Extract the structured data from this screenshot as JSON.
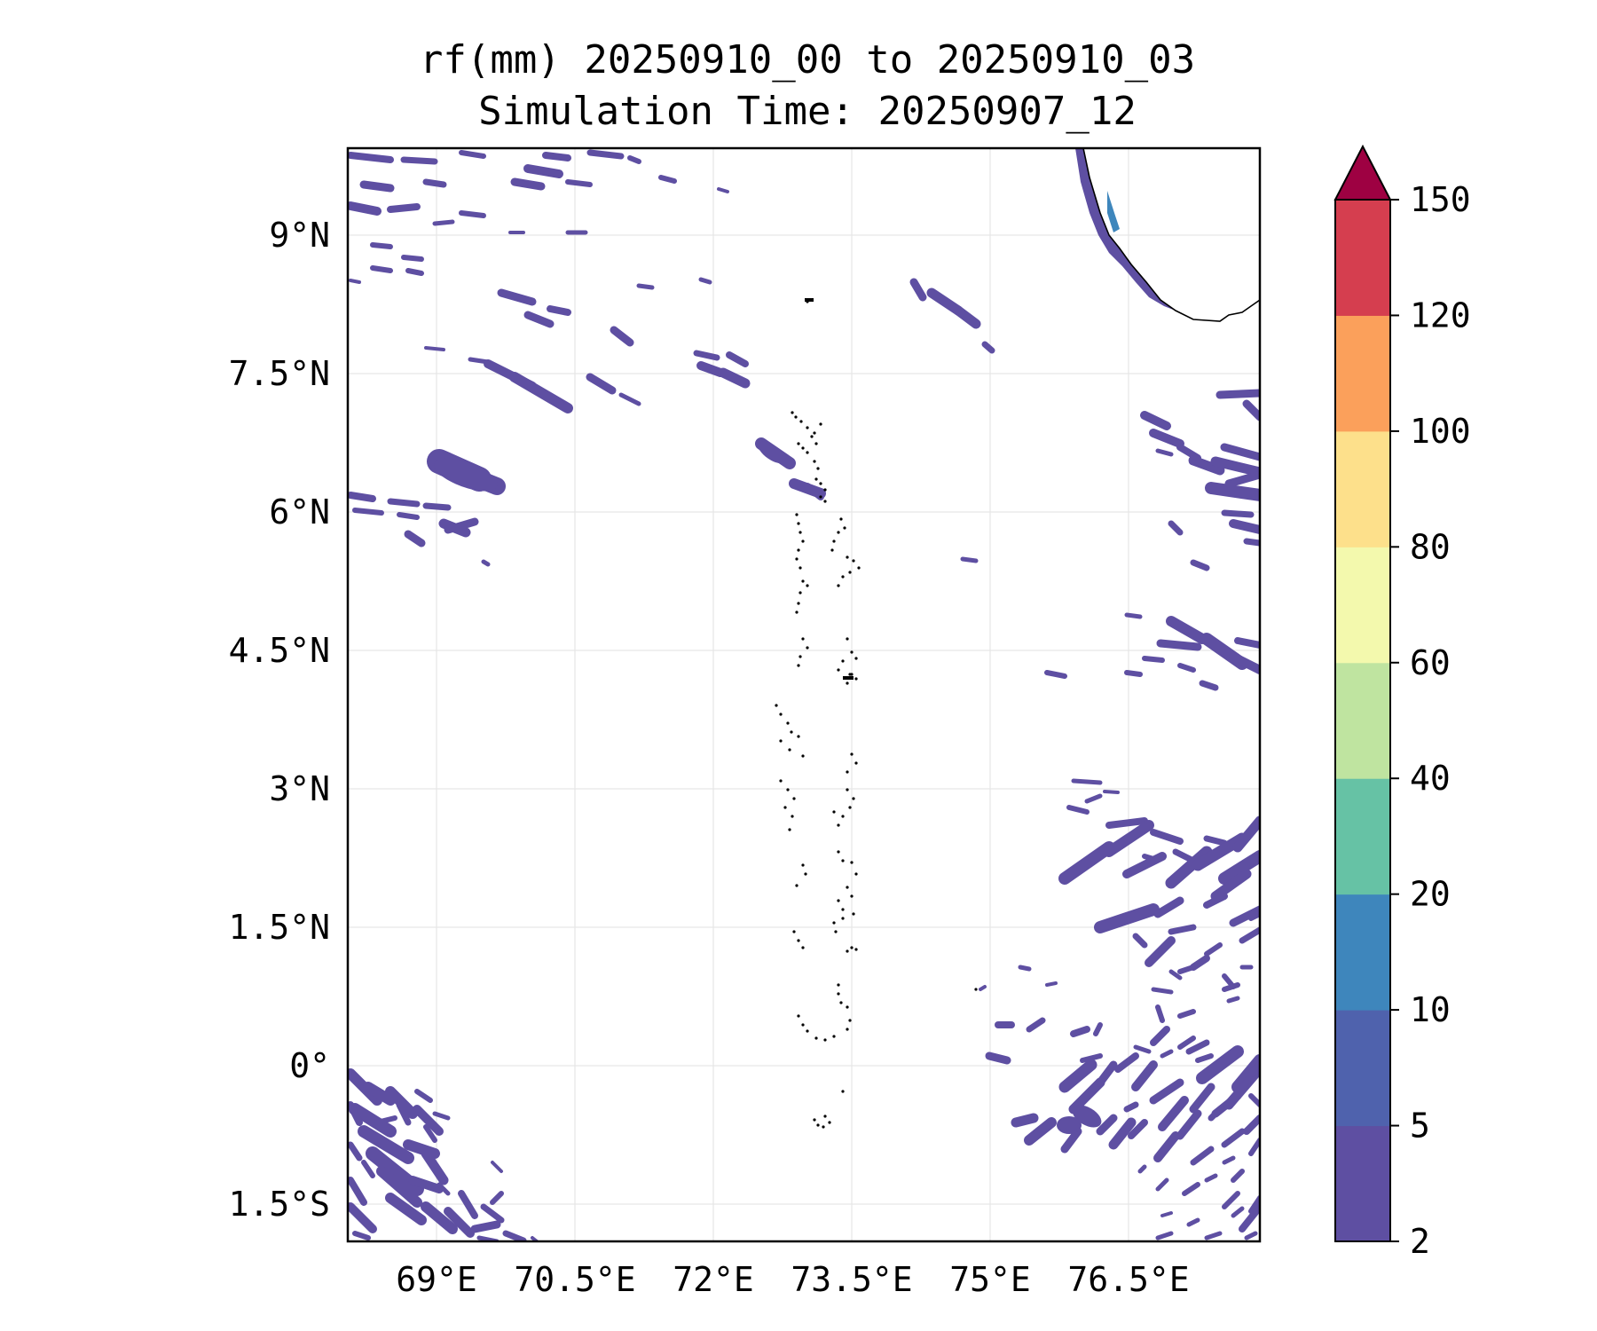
{
  "title": {
    "line1": "rf(mm) 20250910_00 to 20250910_03",
    "line2": "Simulation Time: 20250907_12"
  },
  "map": {
    "lon_labels": [
      "69°E",
      "70.5°E",
      "72°E",
      "73.5°E",
      "75°E",
      "76.5°E"
    ],
    "lat_labels": [
      "9°N",
      "7.5°N",
      "6°N",
      "4.5°N",
      "3°N",
      "1.5°N",
      "0°",
      "1.5°S"
    ],
    "lon_values": [
      69,
      70.5,
      72,
      73.5,
      75,
      76.5
    ],
    "lat_values": [
      9,
      7.5,
      6,
      4.5,
      3,
      1.5,
      0,
      -1.5
    ],
    "rain_color": "#5e4fa2",
    "coast_color": "#000000"
  },
  "colorbar": {
    "levels": [
      "2",
      "5",
      "10",
      "20",
      "40",
      "60",
      "80",
      "100",
      "120",
      "150"
    ],
    "colors": [
      "#5e4fa2",
      "#4f62ad",
      "#3e86bc",
      "#66c2a5",
      "#bfe4a0",
      "#f3f9ad",
      "#fde08b",
      "#fba05b",
      "#d53e4f",
      "#9e0142"
    ],
    "extend": "max"
  }
}
